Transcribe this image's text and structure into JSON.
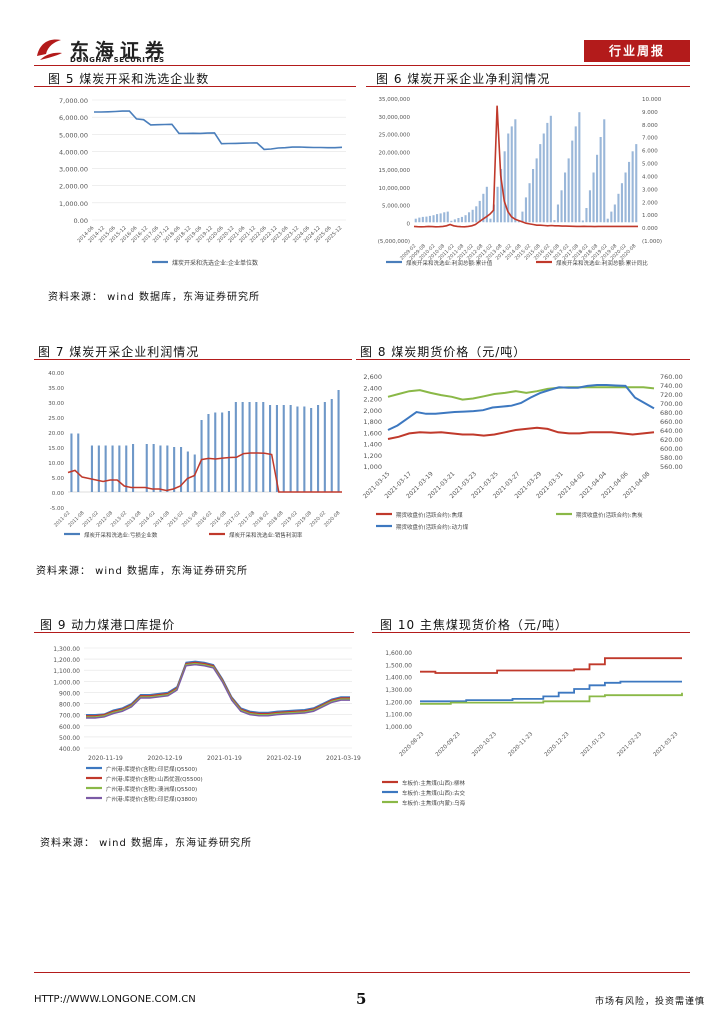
{
  "header": {
    "logo_cn": "东海证券",
    "logo_en": "DONGHAI SECURITIES",
    "report_type": "行业周报"
  },
  "fig5": {
    "title": "图 5   煤炭开采和洗选企业数",
    "chart_data": {
      "type": "line",
      "yticks": [
        "7,000.00",
        "6,000.00",
        "5,000.00",
        "4,000.00",
        "3,000.00",
        "2,000.00",
        "1,000.00",
        "0.00"
      ],
      "ylim": [
        0,
        7000
      ],
      "values": [
        6300,
        6300,
        6310,
        6330,
        6350,
        6350,
        5900,
        5850,
        5550,
        5560,
        5570,
        5580,
        5050,
        5050,
        5060,
        5050,
        5070,
        5080,
        4450,
        4460,
        4470,
        4480,
        4490,
        4500,
        4120,
        4140,
        4200,
        4220,
        4250,
        4260,
        4240,
        4230,
        4230,
        4220,
        4220,
        4240
      ],
      "legend": [
        "煤炭开采和洗选企业:企业单位数"
      ]
    }
  },
  "fig6": {
    "title": "图 6   煤炭开采企业净利润情况",
    "chart_data": {
      "type": "bar+line",
      "yticks_left": [
        "35,000,000",
        "30,000,000",
        "25,000,000",
        "20,000,000",
        "15,000,000",
        "10,000,000",
        "5,000,000",
        "0",
        "(5,000,000)"
      ],
      "yticks_right": [
        "10.000",
        "9.000",
        "8.000",
        "7.000",
        "6.000",
        "5.000",
        "4.000",
        "3.000",
        "2.000",
        "1.000",
        "0.000",
        "(1.000)"
      ],
      "ylim_left": [
        -5000000,
        35000000
      ],
      "ylim_right": [
        -1,
        10
      ],
      "bars": [
        1000000,
        1300000,
        1500000,
        1600000,
        1800000,
        2000000,
        2300000,
        2500000,
        2800000,
        3000000,
        400000,
        800000,
        1200000,
        1500000,
        2000000,
        2800000,
        3500000,
        4500000,
        6000000,
        8000000,
        10000000,
        1000000,
        5000000,
        10000000,
        15000000,
        20000000,
        25000000,
        27000000,
        29000000,
        500000,
        3000000,
        7000000,
        11000000,
        15000000,
        18000000,
        22000000,
        25000000,
        28000000,
        30000000,
        600000,
        5000000,
        9000000,
        14000000,
        18000000,
        23000000,
        27000000,
        31000000,
        500000,
        4000000,
        9000000,
        14000000,
        19000000,
        24000000,
        29000000,
        1000000,
        3000000,
        5000000,
        8000000,
        11000000,
        14000000,
        17000000,
        20000000,
        22000000
      ],
      "line": [
        0.05,
        0.03,
        0.02,
        0.03,
        0.05,
        0.04,
        0.02,
        0.03,
        0.05,
        0.1,
        0.2,
        0.1,
        0.05,
        0.03,
        0.02,
        0.05,
        0.1,
        0.2,
        0.4,
        0.6,
        0.8,
        1.0,
        1.3,
        9.4,
        4.0,
        2.0,
        1.2,
        0.8,
        0.6,
        0.5,
        0.4,
        0.3,
        0.25,
        0.2,
        0.15,
        0.15,
        0.12,
        0.1,
        0.12,
        0.1,
        0.1,
        0.08,
        0.08,
        0.07,
        0.06,
        0.05,
        0.05,
        0.06,
        0.05,
        0.05,
        0.04,
        0.05,
        0.05,
        0.05,
        0.05,
        0.05,
        0.05,
        0.05,
        0.05,
        0.05,
        0.05,
        0.05,
        0.05
      ],
      "legend": [
        "煤炭开采和洗选业:利润总额:累计值",
        "煤炭开采和洗选业:利润总额:累计同比"
      ]
    }
  },
  "source_1": "资料来源：  wind 数据库，东海证券研究所",
  "fig7": {
    "title": "图 7   煤炭开采企业利润情况",
    "chart_data": {
      "type": "bar+line",
      "yticks": [
        "40.00",
        "35.00",
        "30.00",
        "25.00",
        "20.00",
        "15.00",
        "10.00",
        "5.00",
        "0.00",
        "-5.00"
      ],
      "ylim": [
        -5,
        40
      ],
      "bars": [
        19.5,
        19.5,
        0,
        15.5,
        15.5,
        15.5,
        15.5,
        15.5,
        15.5,
        16.0,
        0,
        16.0,
        16.0,
        15.5,
        15.5,
        15.0,
        15.0,
        13.5,
        12.5,
        24.0,
        26.0,
        26.5,
        26.5,
        27.0,
        30.0,
        30.0,
        30.0,
        30.0,
        30.0,
        29.0,
        29.0,
        29.0,
        29.0,
        28.5,
        28.5,
        28.0,
        29.0,
        30.0,
        31.0,
        34.0
      ],
      "line": [
        6.5,
        7.2,
        5.0,
        4.5,
        4.0,
        3.5,
        4.0,
        4.0,
        2.0,
        1.5,
        1.5,
        1.5,
        1.0,
        1.0,
        0.5,
        1.0,
        2.0,
        4.5,
        5.5,
        10.8,
        11.2,
        11.0,
        11.3,
        11.5,
        11.6,
        12.8,
        13.0,
        13.0,
        12.9,
        12.5,
        0.0,
        0.0,
        0.0,
        0.0,
        0.0,
        0.0,
        0.0,
        0.0,
        0.0,
        0.0
      ],
      "legend": [
        "煤炭开采和洗选业:亏损企业数",
        "煤炭开采和洗选业:销售利润率"
      ]
    }
  },
  "fig8": {
    "title": "图 8   煤炭期货价格（元/吨）",
    "chart_data": {
      "type": "line",
      "yticks_left": [
        "2,600",
        "2,400",
        "2,200",
        "2,000",
        "1,800",
        "1,600",
        "1,400",
        "1,200",
        "1,000"
      ],
      "yticks_right": [
        "760.00",
        "740.00",
        "720.00",
        "700.00",
        "680.00",
        "660.00",
        "640.00",
        "620.00",
        "600.00",
        "580.00",
        "560.00"
      ],
      "ylim_left": [
        1000,
        2600
      ],
      "ylim_right": [
        560,
        760
      ],
      "xlabels": [
        "2021-03-15",
        "2021-03-17",
        "2021-03-19",
        "2021-03-21",
        "2021-03-23",
        "2021-03-25",
        "2021-03-27",
        "2021-03-29",
        "2021-03-31",
        "2021-04-02",
        "2021-04-04",
        "2021-04-06",
        "2021-04-08"
      ],
      "series": [
        {
          "name": "期货收盘价(活跃合约):焦煤",
          "axis": "left",
          "values": [
            1480,
            1520,
            1580,
            1600,
            1590,
            1600,
            1580,
            1560,
            1560,
            1540,
            1560,
            1600,
            1640,
            1660,
            1680,
            1660,
            1600,
            1580,
            1580,
            1600,
            1600,
            1600,
            1580,
            1560,
            1580,
            1600
          ]
        },
        {
          "name": "期货收盘价(活跃合约):焦炭",
          "axis": "left",
          "values": [
            2230,
            2280,
            2330,
            2350,
            2300,
            2260,
            2230,
            2180,
            2200,
            2240,
            2280,
            2300,
            2330,
            2300,
            2330,
            2370,
            2390,
            2400,
            2400,
            2400,
            2400,
            2400,
            2400,
            2400,
            2400,
            2380
          ]
        },
        {
          "name": "期货收盘价(活跃合约):动力煤",
          "axis": "right",
          "values": [
            640,
            650,
            665,
            680,
            676,
            676,
            678,
            680,
            681,
            682,
            684,
            690,
            692,
            694,
            700,
            712,
            722,
            729,
            735,
            734,
            734,
            738,
            740,
            740,
            739,
            738,
            712,
            700,
            688
          ]
        }
      ]
    }
  },
  "source_2": "资料来源：  wind 数据库，东海证券研究所",
  "fig9": {
    "title": "图 9   动力煤港口库提价",
    "chart_data": {
      "type": "line",
      "yticks": [
        "1,300.00",
        "1,200.00",
        "1,100.00",
        "1,000.00",
        "900.00",
        "800.00",
        "700.00",
        "600.00",
        "500.00",
        "400.00"
      ],
      "ylim": [
        400,
        1300
      ],
      "xlabels": [
        "2020-11-19",
        "2020-12-19",
        "2021-01-19",
        "2021-02-19",
        "2021-03-19"
      ],
      "series": [
        {
          "name": "广州港:库提价(含税):印尼煤(Q5500)",
          "values": [
            700,
            700,
            705,
            740,
            760,
            800,
            880,
            880,
            890,
            900,
            950,
            1170,
            1180,
            1170,
            1150,
            1020,
            860,
            760,
            730,
            720,
            720,
            730,
            735,
            740,
            745,
            760,
            800,
            840,
            860,
            860
          ]
        },
        {
          "name": "广州港:库提价(含税):山西优混(Q5500)",
          "values": [
            690,
            690,
            700,
            730,
            750,
            790,
            870,
            870,
            880,
            890,
            940,
            1160,
            1170,
            1160,
            1140,
            1010,
            850,
            750,
            720,
            710,
            710,
            720,
            725,
            730,
            735,
            750,
            790,
            830,
            850,
            850
          ]
        },
        {
          "name": "广州港:库提价(含税):澳洲煤(Q5500)",
          "values": [
            680,
            680,
            690,
            720,
            740,
            780,
            860,
            860,
            870,
            880,
            930,
            1150,
            1160,
            1150,
            1130,
            1000,
            840,
            740,
            710,
            700,
            700,
            710,
            715,
            720,
            725,
            740,
            780,
            820,
            840,
            840
          ]
        },
        {
          "name": "广州港:库提价(含税):印尼煤(Q3800)",
          "values": [
            670,
            670,
            680,
            710,
            730,
            770,
            850,
            850,
            860,
            870,
            920,
            1140,
            1150,
            1140,
            1120,
            990,
            830,
            730,
            700,
            690,
            690,
            700,
            705,
            710,
            715,
            730,
            770,
            810,
            830,
            830
          ]
        }
      ]
    }
  },
  "fig10": {
    "title": "图 10   主焦煤现货价格（元/吨）",
    "chart_data": {
      "type": "line",
      "yticks": [
        "1,600.00",
        "1,500.00",
        "1,400.00",
        "1,300.00",
        "1,200.00",
        "1,100.00",
        "1,000.00"
      ],
      "ylim": [
        1000,
        1600
      ],
      "xlabels": [
        "2020-08-23",
        "2020-09-23",
        "2020-10-23",
        "2020-11-23",
        "2020-12-23",
        "2021-01-23",
        "2021-02-23",
        "2021-03-23"
      ],
      "series": [
        {
          "name": "车板价:主焦煤(山西):柳林",
          "values": [
            1440,
            1430,
            1430,
            1430,
            1430,
            1450,
            1450,
            1450,
            1450,
            1450,
            1460,
            1500,
            1550,
            1550,
            1550,
            1550,
            1550,
            1550
          ]
        },
        {
          "name": "车板价:主焦煤(山西):古交",
          "values": [
            1200,
            1200,
            1200,
            1210,
            1210,
            1210,
            1220,
            1220,
            1240,
            1270,
            1300,
            1330,
            1350,
            1360,
            1360,
            1360,
            1360,
            1360
          ]
        },
        {
          "name": "车板价:主焦煤(内蒙):乌海",
          "values": [
            1180,
            1180,
            1190,
            1190,
            1190,
            1190,
            1190,
            1190,
            1200,
            1200,
            1200,
            1240,
            1250,
            1250,
            1250,
            1250,
            1250,
            1270
          ]
        }
      ]
    }
  },
  "source_3": "资料来源：  wind 数据库，东海证券研究所",
  "footer": {
    "url": "HTTP://WWW.LONGONE.COM.CN",
    "page": "5",
    "risk": "市场有风险，投资需谨慎"
  }
}
